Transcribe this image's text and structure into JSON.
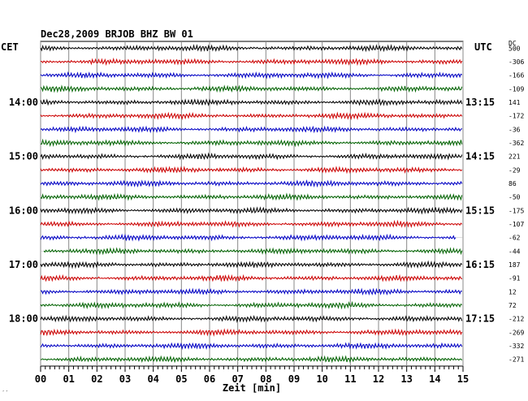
{
  "chart_data": {
    "type": "line",
    "title": "Dec28,2009   BRJOB BHZ BW 01",
    "xlabel": "Zeit [min]",
    "xlim": [
      0,
      15
    ],
    "x_ticks": [
      "00",
      "01",
      "02",
      "03",
      "04",
      "05",
      "06",
      "07",
      "08",
      "09",
      "10",
      "11",
      "12",
      "13",
      "14",
      "15"
    ],
    "left_axis_label": "CET",
    "right_axis_label": "UTC",
    "dc_label": "DC",
    "cet_hours": [
      "14:00",
      "15:00",
      "16:00",
      "17:00",
      "18:00"
    ],
    "utc_hours": [
      "13:15",
      "14:15",
      "15:15",
      "16:15",
      "17:15"
    ],
    "hour_line_index": [
      4,
      8,
      12,
      16,
      20
    ],
    "dc_offsets": [
      "500",
      "-306",
      "-166",
      "-109",
      "141",
      "-172",
      "-36",
      "-362",
      "221",
      "-29",
      "86",
      "-50",
      "-175",
      "-107",
      "-62",
      "-44",
      "187",
      "-91",
      "12",
      "72",
      "-212",
      "-269",
      "-332",
      "-271"
    ],
    "trace_colors": [
      "#000000",
      "#d00000",
      "#0000c8",
      "#006400"
    ],
    "grid": true,
    "corner_mark": "′′"
  }
}
